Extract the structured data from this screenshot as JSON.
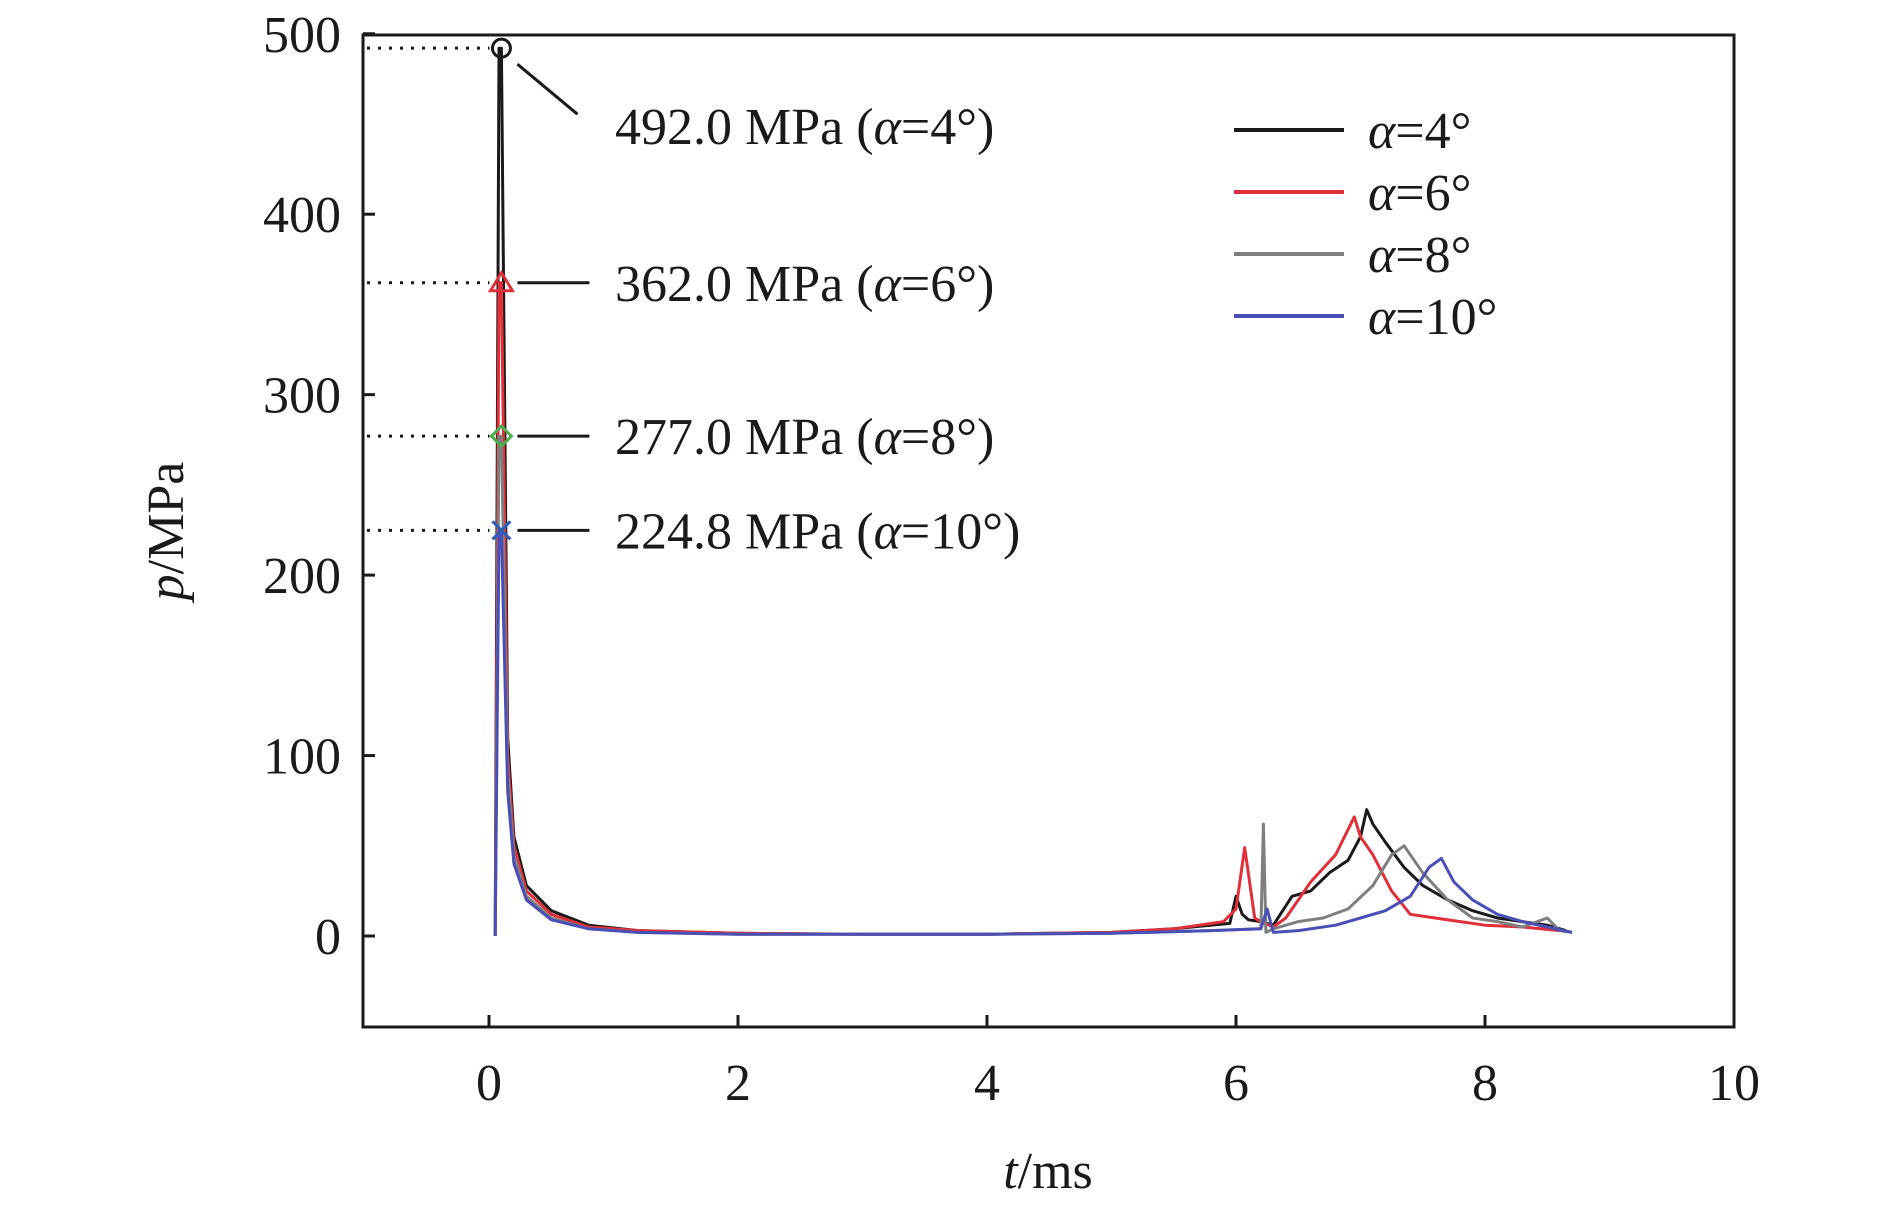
{
  "chart_data": {
    "type": "line",
    "title": "",
    "xlabel_var": "t",
    "xlabel_unit": "/ms",
    "ylabel_var": "p",
    "ylabel_unit": "/MPa",
    "xlim": [
      -1,
      10
    ],
    "ylim": [
      -50,
      500
    ],
    "xticks": [
      0,
      2,
      4,
      6,
      8,
      10
    ],
    "yticks": [
      0,
      100,
      200,
      300,
      400,
      500
    ],
    "grid": false,
    "legend_position": "top-right",
    "series": [
      {
        "name_var": "α",
        "name_val": "=4°",
        "color": "#1a1a1a",
        "x": [
          0.05,
          0.08,
          0.1,
          0.15,
          0.2,
          0.3,
          0.5,
          0.8,
          1.2,
          2,
          3,
          4,
          5,
          5.5,
          5.95,
          6.0,
          6.05,
          6.1,
          6.2,
          6.3,
          6.45,
          6.6,
          6.75,
          6.9,
          7.0,
          7.05,
          7.1,
          7.2,
          7.35,
          7.5,
          7.7,
          7.9,
          8.1,
          8.3,
          8.5,
          8.65
        ],
        "y": [
          0,
          492,
          492,
          110,
          55,
          28,
          14,
          6,
          3,
          1.5,
          1,
          1,
          2,
          4,
          7,
          22,
          12,
          9,
          8,
          6,
          22,
          25,
          35,
          42,
          55,
          70,
          62,
          52,
          38,
          28,
          20,
          14,
          10,
          8,
          6,
          3
        ]
      },
      {
        "name_var": "α",
        "name_val": "=6°",
        "color": "#e0303a",
        "x": [
          0.05,
          0.08,
          0.1,
          0.15,
          0.2,
          0.3,
          0.5,
          0.8,
          1.2,
          2,
          3,
          4,
          5,
          5.5,
          5.9,
          6.0,
          6.07,
          6.15,
          6.2,
          6.3,
          6.4,
          6.6,
          6.8,
          6.95,
          7.0,
          7.1,
          7.25,
          7.4,
          7.6,
          7.8,
          8.0,
          8.3,
          8.6
        ],
        "y": [
          0,
          362,
          362,
          100,
          50,
          25,
          12,
          5,
          3,
          1.5,
          1,
          1,
          2,
          4,
          8,
          15,
          49,
          10,
          8,
          5,
          10,
          30,
          45,
          66,
          55,
          45,
          25,
          12,
          10,
          8,
          6,
          5,
          3
        ]
      },
      {
        "name_var": "α",
        "name_val": "=8°",
        "color": "#7f7f7f",
        "x": [
          0.05,
          0.08,
          0.1,
          0.15,
          0.2,
          0.3,
          0.5,
          0.8,
          1.2,
          2,
          3,
          4,
          5,
          5.8,
          6.2,
          6.22,
          6.24,
          6.3,
          6.5,
          6.7,
          6.9,
          7.1,
          7.25,
          7.35,
          7.5,
          7.7,
          7.9,
          8.1,
          8.3,
          8.5,
          8.6,
          8.7
        ],
        "y": [
          0,
          277,
          277,
          90,
          45,
          22,
          10,
          4,
          2,
          1,
          1,
          1,
          1.5,
          3,
          4,
          62,
          2,
          4,
          8,
          10,
          15,
          28,
          45,
          50,
          35,
          20,
          10,
          8,
          5,
          10,
          3,
          2
        ]
      },
      {
        "name_var": "α",
        "name_val": "=10°",
        "color": "#4a4fb5",
        "x": [
          0.05,
          0.08,
          0.1,
          0.15,
          0.2,
          0.3,
          0.5,
          0.8,
          1.2,
          2,
          3,
          4,
          5,
          5.8,
          6.2,
          6.25,
          6.3,
          6.5,
          6.8,
          7.0,
          7.2,
          7.4,
          7.55,
          7.65,
          7.75,
          7.9,
          8.1,
          8.3,
          8.5,
          8.7
        ],
        "y": [
          0,
          224.8,
          224.8,
          80,
          40,
          20,
          9,
          4,
          2,
          1,
          1,
          1,
          1.5,
          3,
          4,
          15,
          2,
          3,
          6,
          10,
          14,
          22,
          38,
          43,
          30,
          20,
          12,
          8,
          5,
          2
        ]
      }
    ],
    "annotations": [
      {
        "value": "492.0 MPa",
        "paren_open": " (",
        "var": "α",
        "rest": "=4°)",
        "x": 0.1,
        "y": 492.0,
        "marker": "circle",
        "color": "#1a1a1a"
      },
      {
        "value": "362.0 MPa",
        "paren_open": " (",
        "var": "α",
        "rest": "=6°)",
        "x": 0.1,
        "y": 362.0,
        "marker": "triangle",
        "color": "#e0303a"
      },
      {
        "value": "277.0 MPa",
        "paren_open": " (",
        "var": "α",
        "rest": "=8°)",
        "x": 0.1,
        "y": 277.0,
        "marker": "diamond",
        "color": "#4caf50"
      },
      {
        "value": "224.8 MPa",
        "paren_open": " (",
        "var": "α",
        "rest": "=10°)",
        "x": 0.1,
        "y": 224.8,
        "marker": "cross",
        "color": "#2e5db8"
      }
    ]
  }
}
